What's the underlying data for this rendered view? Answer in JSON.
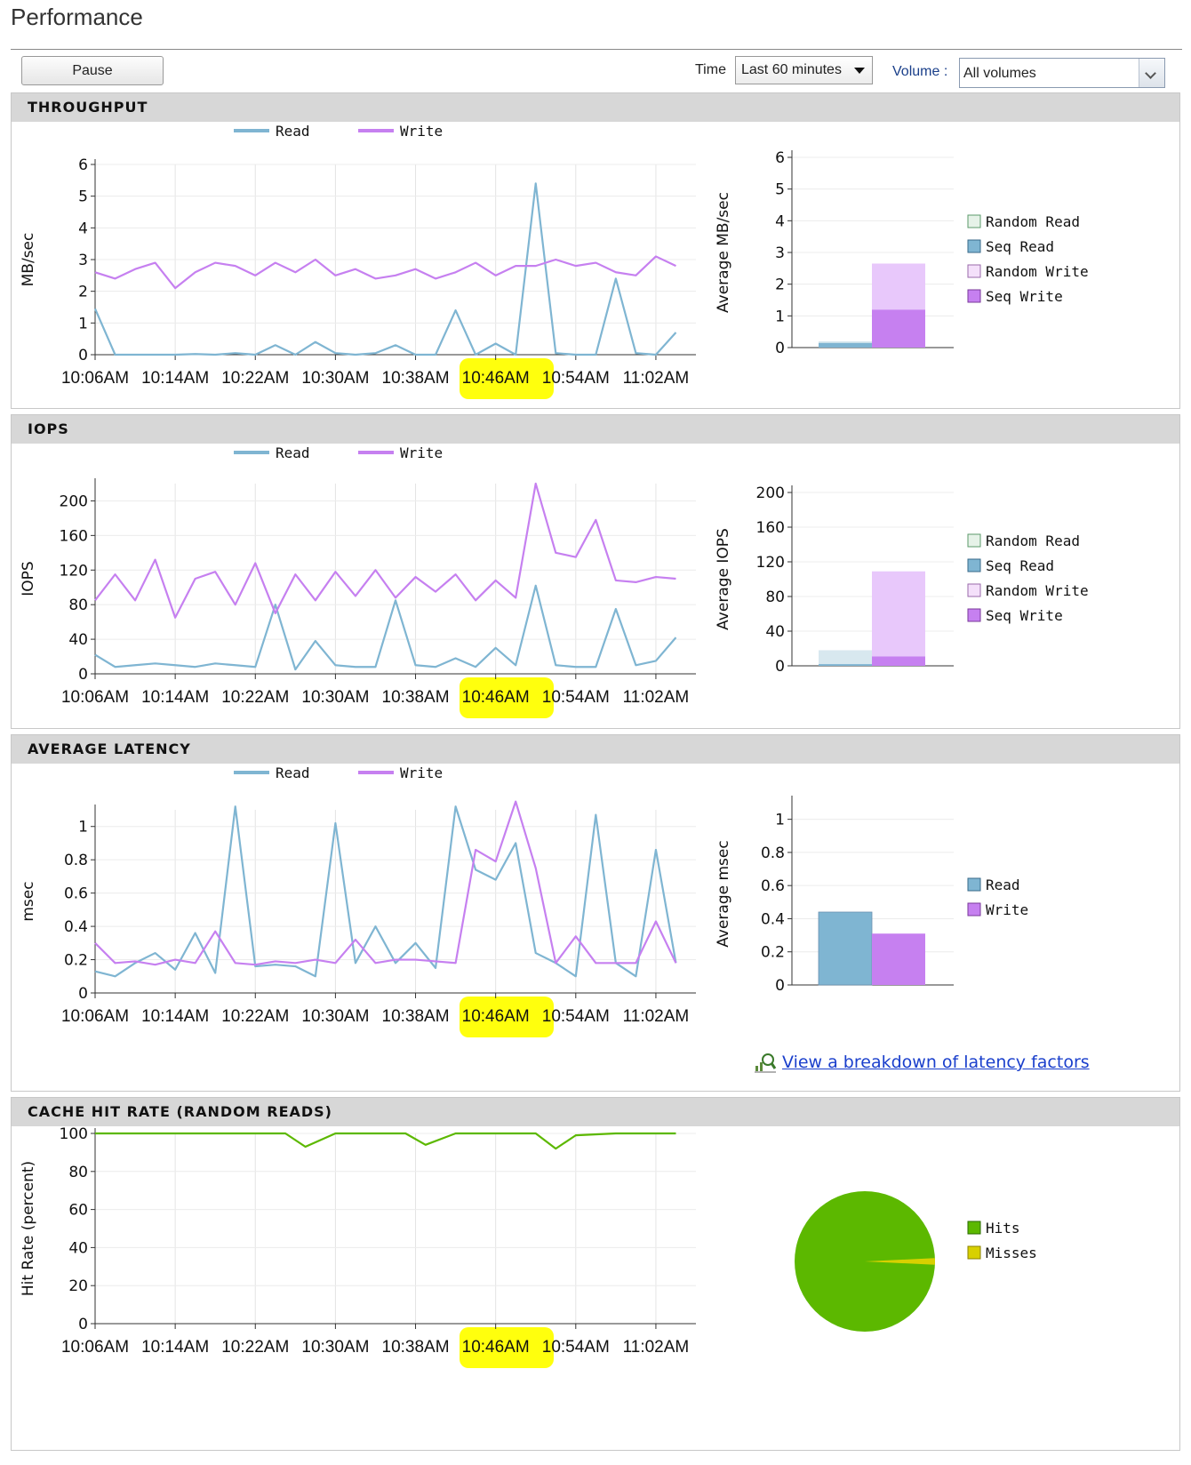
{
  "page": {
    "title": "Performance"
  },
  "toolbar": {
    "pause_label": "Pause",
    "time_label": "Time",
    "time_value": "Last 60 minutes",
    "volume_label": "Volume :",
    "volume_value": "All volumes"
  },
  "x_ticks": [
    "10:06AM",
    "10:14AM",
    "10:22AM",
    "10:30AM",
    "10:38AM",
    "10:46AM",
    "10:54AM",
    "11:02AM"
  ],
  "colors": {
    "read": "#7fb5d2",
    "write": "#c680f0",
    "hits": "#5cb800",
    "misses": "#d8d000",
    "highlight": "#ffff00"
  },
  "panels": {
    "throughput": {
      "title": "THROUGHPUT",
      "legend": {
        "read": "Read",
        "write": "Write"
      },
      "ylabel": "MB/sec",
      "bar_ylabel": "Average MB/sec",
      "bar_legend": [
        "Random Read",
        "Seq Read",
        "Random Write",
        "Seq Write"
      ]
    },
    "iops": {
      "title": "IOPS",
      "legend": {
        "read": "Read",
        "write": "Write"
      },
      "ylabel": "IOPS",
      "bar_ylabel": "Average IOPS",
      "bar_legend": [
        "Random Read",
        "Seq Read",
        "Random Write",
        "Seq Write"
      ]
    },
    "latency": {
      "title": "AVERAGE LATENCY",
      "legend": {
        "read": "Read",
        "write": "Write"
      },
      "ylabel": "msec",
      "bar_ylabel": "Average msec",
      "bar_legend": [
        "Read",
        "Write"
      ],
      "link_text": "View a breakdown of latency factors"
    },
    "cache": {
      "title": "CACHE HIT RATE (RANDOM READS)",
      "ylabel": "Hit Rate (percent)",
      "pie_legend": [
        "Hits",
        "Misses"
      ]
    }
  },
  "chart_data": [
    {
      "type": "line",
      "title": "THROUGHPUT",
      "ylabel": "MB/sec",
      "ylim": [
        0,
        6
      ],
      "yticks": [
        0,
        1,
        2,
        3,
        4,
        5,
        6
      ],
      "x_minutes": [
        0,
        2,
        4,
        6,
        8,
        10,
        12,
        14,
        16,
        18,
        20,
        22,
        24,
        26,
        28,
        30,
        32,
        34,
        36,
        38,
        40,
        42,
        44,
        46,
        48,
        50,
        52,
        54,
        56,
        58
      ],
      "series": [
        {
          "name": "Read",
          "values": [
            1.45,
            0,
            0,
            0,
            0,
            0.02,
            0,
            0.05,
            0,
            0.3,
            0,
            0.4,
            0.05,
            0,
            0.05,
            0.3,
            0,
            0,
            1.4,
            0,
            0.35,
            0,
            5.4,
            0.05,
            0,
            0,
            2.4,
            0.05,
            0,
            0.7
          ]
        },
        {
          "name": "Write",
          "values": [
            2.6,
            2.4,
            2.7,
            2.9,
            2.1,
            2.6,
            2.9,
            2.8,
            2.5,
            2.9,
            2.6,
            3.0,
            2.5,
            2.7,
            2.4,
            2.5,
            2.7,
            2.4,
            2.6,
            2.9,
            2.5,
            2.8,
            2.8,
            3.0,
            2.8,
            2.9,
            2.6,
            2.5,
            3.1,
            2.8
          ]
        }
      ]
    },
    {
      "type": "bar",
      "title": "Average MB/sec",
      "ylim": [
        0,
        6
      ],
      "categories": [
        "Read",
        "Write"
      ],
      "series": [
        {
          "name": "Random Read",
          "values": [
            0.05,
            0
          ]
        },
        {
          "name": "Seq Read",
          "values": [
            0.15,
            0
          ]
        },
        {
          "name": "Random Write",
          "values": [
            0,
            1.45
          ]
        },
        {
          "name": "Seq Write",
          "values": [
            0,
            1.2
          ]
        }
      ]
    },
    {
      "type": "line",
      "title": "IOPS",
      "ylabel": "IOPS",
      "ylim": [
        0,
        220
      ],
      "yticks": [
        0,
        40,
        80,
        120,
        160,
        200
      ],
      "x_minutes": [
        0,
        2,
        4,
        6,
        8,
        10,
        12,
        14,
        16,
        18,
        20,
        22,
        24,
        26,
        28,
        30,
        32,
        34,
        36,
        38,
        40,
        42,
        44,
        46,
        48,
        50,
        52,
        54,
        56,
        58
      ],
      "series": [
        {
          "name": "Read",
          "values": [
            22,
            8,
            10,
            12,
            10,
            8,
            12,
            10,
            8,
            80,
            5,
            38,
            10,
            8,
            8,
            85,
            10,
            8,
            18,
            8,
            30,
            10,
            102,
            10,
            8,
            8,
            75,
            10,
            15,
            42
          ]
        },
        {
          "name": "Write",
          "values": [
            85,
            115,
            85,
            132,
            65,
            110,
            118,
            80,
            128,
            70,
            115,
            85,
            118,
            90,
            120,
            88,
            112,
            95,
            115,
            85,
            108,
            88,
            220,
            140,
            135,
            178,
            108,
            106,
            112,
            110
          ]
        }
      ]
    },
    {
      "type": "bar",
      "title": "Average IOPS",
      "ylim": [
        0,
        200
      ],
      "categories": [
        "Read",
        "Write"
      ],
      "series": [
        {
          "name": "Random Read",
          "values": [
            16,
            0
          ]
        },
        {
          "name": "Seq Read",
          "values": [
            2,
            0
          ]
        },
        {
          "name": "Random Write",
          "values": [
            0,
            98
          ]
        },
        {
          "name": "Seq Write",
          "values": [
            0,
            11
          ]
        }
      ]
    },
    {
      "type": "line",
      "title": "AVERAGE LATENCY",
      "ylabel": "msec",
      "ylim": [
        0,
        1.1
      ],
      "yticks": [
        0,
        0.2,
        0.4,
        0.6,
        0.8,
        1
      ],
      "x_minutes": [
        0,
        2,
        4,
        6,
        8,
        10,
        12,
        14,
        16,
        18,
        20,
        22,
        24,
        26,
        28,
        30,
        32,
        34,
        36,
        38,
        40,
        42,
        44,
        46,
        48,
        50,
        52,
        54,
        56,
        58
      ],
      "series": [
        {
          "name": "Read",
          "values": [
            0.13,
            0.1,
            0.18,
            0.24,
            0.14,
            0.36,
            0.12,
            1.12,
            0.16,
            0.17,
            0.16,
            0.1,
            1.02,
            0.18,
            0.4,
            0.18,
            0.3,
            0.15,
            1.12,
            0.74,
            0.68,
            0.9,
            0.24,
            0.18,
            0.1,
            1.07,
            0.18,
            0.1,
            0.86,
            0.18
          ]
        },
        {
          "name": "Write",
          "values": [
            0.3,
            0.18,
            0.19,
            0.17,
            0.2,
            0.18,
            0.37,
            0.18,
            0.17,
            0.19,
            0.18,
            0.2,
            0.18,
            0.32,
            0.18,
            0.2,
            0.2,
            0.19,
            0.18,
            0.86,
            0.79,
            1.15,
            0.75,
            0.18,
            0.34,
            0.18,
            0.18,
            0.18,
            0.43,
            0.18
          ]
        }
      ]
    },
    {
      "type": "bar",
      "title": "Average msec",
      "ylim": [
        0,
        1.1
      ],
      "categories": [
        "Read",
        "Write"
      ],
      "values": [
        0.44,
        0.31
      ]
    },
    {
      "type": "line",
      "title": "CACHE HIT RATE (RANDOM READS)",
      "ylabel": "Hit Rate (percent)",
      "ylim": [
        0,
        100
      ],
      "yticks": [
        0,
        20,
        40,
        60,
        80,
        100
      ],
      "x_minutes": [
        0,
        4,
        8,
        12,
        16,
        19,
        21,
        24,
        28,
        31,
        33,
        36,
        40,
        44,
        46,
        48,
        52,
        56,
        58
      ],
      "series": [
        {
          "name": "Hits",
          "values": [
            100,
            100,
            100,
            100,
            100,
            100,
            93,
            100,
            100,
            100,
            94,
            100,
            100,
            100,
            92,
            99,
            100,
            100,
            100
          ]
        }
      ]
    },
    {
      "type": "pie",
      "categories": [
        "Hits",
        "Misses"
      ],
      "values": [
        98.5,
        1.5
      ]
    }
  ]
}
